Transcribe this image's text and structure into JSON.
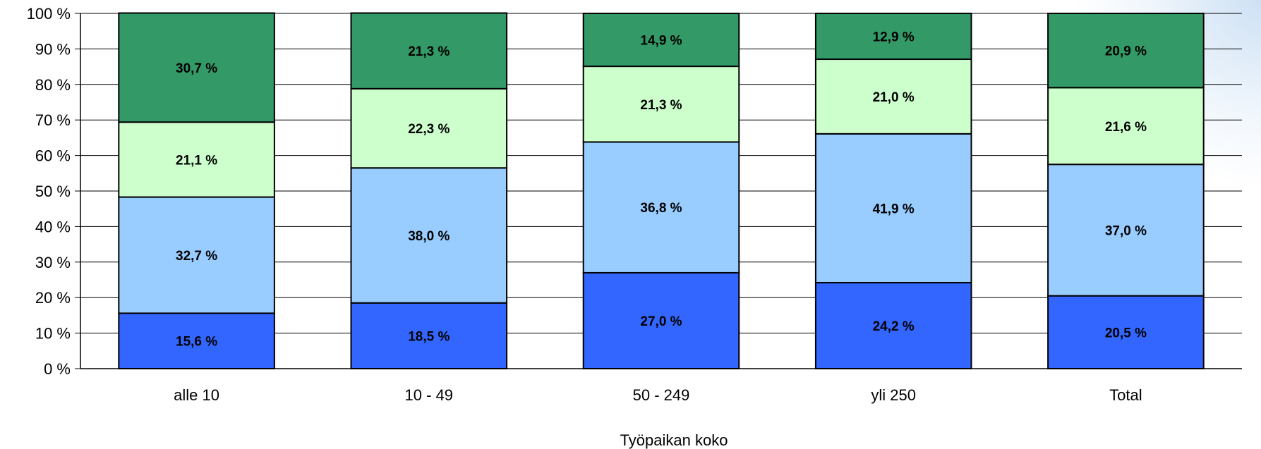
{
  "chart_data": {
    "type": "bar",
    "stacked": true,
    "percent_scale": true,
    "categories": [
      "alle 10",
      "10 - 49",
      "50 - 249",
      "yli 250",
      "Total"
    ],
    "series": [
      {
        "color": "#3366ff",
        "values": [
          15.6,
          18.5,
          27.0,
          24.2,
          20.5
        ],
        "labels": [
          "15,6 %",
          "18,5 %",
          "27,0 %",
          "24,2 %",
          "20,5 %"
        ]
      },
      {
        "color": "#99ccff",
        "values": [
          32.7,
          38.0,
          36.8,
          41.9,
          37.0
        ],
        "labels": [
          "32,7 %",
          "38,0 %",
          "36,8 %",
          "41,9 %",
          "37,0 %"
        ]
      },
      {
        "color": "#ccffcc",
        "values": [
          21.1,
          22.3,
          21.3,
          21.0,
          21.6
        ],
        "labels": [
          "21,1 %",
          "22,3 %",
          "21,3 %",
          "21,0 %",
          "21,6 %"
        ]
      },
      {
        "color": "#339966",
        "values": [
          30.7,
          21.3,
          14.9,
          12.9,
          20.9
        ],
        "labels": [
          "30,7 %",
          "21,3 %",
          "14,9 %",
          "12,9 %",
          "20,9 %"
        ]
      }
    ],
    "y_ticks": [
      "0 %",
      "10 %",
      "20 %",
      "30 %",
      "40 %",
      "50 %",
      "60 %",
      "70 %",
      "80 %",
      "90 %",
      "100 %"
    ],
    "ylim": [
      0,
      100
    ],
    "xlabel": "Työpaikan koko",
    "grid": true,
    "legend": "none"
  }
}
